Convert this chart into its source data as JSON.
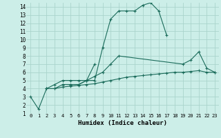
{
  "bg_color": "#cceee8",
  "grid_color": "#aad4cc",
  "line_color": "#1a6b5a",
  "xlabel": "Humidex (Indice chaleur)",
  "xlim": [
    -0.5,
    23.5
  ],
  "ylim": [
    1,
    14.5
  ],
  "xtick_labels": [
    "0",
    "1",
    "2",
    "3",
    "4",
    "5",
    "6",
    "7",
    "8",
    "9",
    "10",
    "11",
    "12",
    "13",
    "14",
    "15",
    "16",
    "17",
    "18",
    "19",
    "20",
    "21",
    "22",
    "23"
  ],
  "xtick_vals": [
    0,
    1,
    2,
    3,
    4,
    5,
    6,
    7,
    8,
    9,
    10,
    11,
    12,
    13,
    14,
    15,
    16,
    17,
    18,
    19,
    20,
    21,
    22,
    23
  ],
  "ytick_vals": [
    1,
    2,
    3,
    4,
    5,
    6,
    7,
    8,
    9,
    10,
    11,
    12,
    13,
    14
  ],
  "series": [
    {
      "x": [
        0,
        1,
        2,
        3,
        4,
        5,
        6,
        7,
        8,
        9,
        10,
        11,
        12,
        13,
        14,
        15,
        16,
        17
      ],
      "y": [
        3.0,
        1.5,
        4.0,
        4.5,
        5.0,
        5.0,
        5.0,
        5.0,
        5.0,
        9.0,
        12.5,
        13.5,
        13.5,
        13.5,
        14.2,
        14.5,
        13.5,
        10.5
      ]
    },
    {
      "x": [
        4,
        5,
        6,
        7,
        8
      ],
      "y": [
        4.5,
        4.5,
        4.5,
        5.0,
        7.0
      ]
    },
    {
      "x": [
        2,
        3,
        4,
        5,
        6,
        7,
        8,
        9,
        10,
        11,
        19,
        20,
        21,
        22,
        23
      ],
      "y": [
        4.0,
        4.0,
        4.5,
        4.5,
        4.5,
        5.0,
        5.5,
        6.0,
        7.0,
        8.0,
        7.0,
        7.5,
        8.5,
        6.5,
        6.0
      ]
    },
    {
      "x": [
        2,
        3,
        4,
        5,
        6,
        7,
        8,
        9,
        10,
        11,
        12,
        13,
        14,
        15,
        16,
        17,
        18,
        19,
        20,
        21,
        22,
        23
      ],
      "y": [
        4.0,
        4.0,
        4.2,
        4.3,
        4.4,
        4.5,
        4.6,
        4.8,
        5.0,
        5.2,
        5.4,
        5.5,
        5.6,
        5.7,
        5.8,
        5.9,
        6.0,
        6.0,
        6.1,
        6.2,
        6.0,
        6.0
      ]
    }
  ]
}
